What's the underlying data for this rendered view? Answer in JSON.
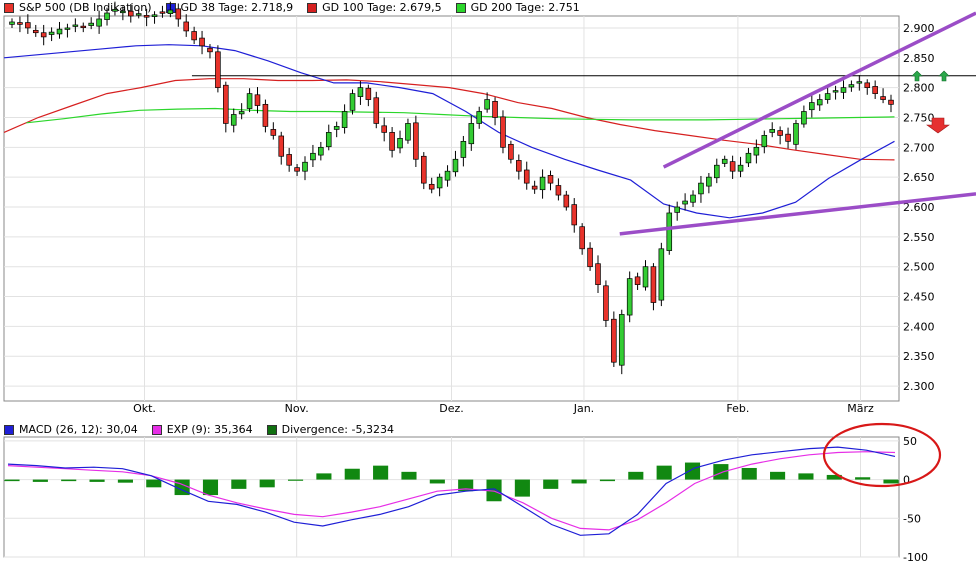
{
  "legend_top": [
    {
      "label": "S&P 500 (DB Indikation)",
      "color": "#e8332b"
    },
    {
      "label": "GD 38 Tage: 2.718,9",
      "color": "#1f1fd6"
    },
    {
      "label": "GD 100 Tage: 2.679,5",
      "color": "#d62020"
    },
    {
      "label": "GD 200 Tage: 2.751",
      "color": "#2bd62b"
    }
  ],
  "legend_macd": [
    {
      "label": "MACD (26, 12): 30,04",
      "color": "#1f1fd6"
    },
    {
      "label": "EXP (9): 35,364",
      "color": "#e62ee6"
    },
    {
      "label": "Divergence: -5,3234",
      "color": "#107010"
    }
  ],
  "chart_data": [
    {
      "type": "candlestick",
      "title": "S&P 500 (DB Indikation)",
      "x_labels": [
        "Okt.",
        "Nov.",
        "Dez.",
        "Jan.",
        "Feb.",
        "März"
      ],
      "y_ticks": [
        "2.900",
        "2.850",
        "2.800",
        "2.750",
        "2.700",
        "2.650",
        "2.600",
        "2.550",
        "2.500",
        "2.450",
        "2.400",
        "2.350",
        "2.300"
      ],
      "ylim": [
        2275,
        2920
      ],
      "close_path": [
        2910,
        2906,
        2900,
        2892,
        2885,
        2893,
        2898,
        2900,
        2905,
        2902,
        2908,
        2915,
        2925,
        2931,
        2928,
        2920,
        2924,
        2918,
        2922,
        2926,
        2930,
        2915,
        2895,
        2880,
        2870,
        2860,
        2800,
        2740,
        2755,
        2760,
        2790,
        2770,
        2735,
        2720,
        2685,
        2670,
        2660,
        2675,
        2690,
        2700,
        2725,
        2735,
        2760,
        2790,
        2800,
        2780,
        2740,
        2725,
        2695,
        2715,
        2740,
        2680,
        2640,
        2630,
        2650,
        2660,
        2680,
        2710,
        2740,
        2760,
        2780,
        2750,
        2700,
        2680,
        2660,
        2640,
        2630,
        2650,
        2640,
        2620,
        2600,
        2570,
        2530,
        2500,
        2470,
        2410,
        2340,
        2420,
        2480,
        2470,
        2500,
        2440,
        2530,
        2590,
        2600,
        2610,
        2620,
        2640,
        2650,
        2670,
        2680,
        2660,
        2670,
        2690,
        2700,
        2720,
        2730,
        2720,
        2710,
        2740,
        2760,
        2775,
        2780,
        2790,
        2795,
        2800,
        2805,
        2810,
        2800,
        2790,
        2780,
        2772
      ],
      "ma_38": {
        "name": "GD 38 Tage",
        "values": [
          2850,
          2855,
          2860,
          2865,
          2870,
          2872,
          2870,
          2862,
          2845,
          2825,
          2808,
          2808,
          2800,
          2790,
          2760,
          2725,
          2700,
          2680,
          2662,
          2645,
          2605,
          2590,
          2582,
          2590,
          2608,
          2648,
          2680,
          2710
        ]
      },
      "ma_100": {
        "name": "GD 100 Tage",
        "values": [
          2725,
          2750,
          2770,
          2790,
          2800,
          2812,
          2815,
          2815,
          2812,
          2812,
          2813,
          2810,
          2805,
          2800,
          2790,
          2775,
          2765,
          2750,
          2738,
          2728,
          2720,
          2712,
          2705,
          2696,
          2688,
          2680,
          2679
        ]
      },
      "ma_200": {
        "name": "GD 200 Tage",
        "values": [
          2741,
          2748,
          2756,
          2762,
          2764,
          2765,
          2762,
          2760,
          2760,
          2759,
          2758,
          2755,
          2752,
          2750,
          2748,
          2747,
          2746,
          2746,
          2746,
          2747,
          2748,
          2749,
          2750,
          2751
        ]
      },
      "resistance": 2820,
      "channel_upper": [
        [
          2667,
          2925
        ],
        [
          2808,
          3160
        ]
      ],
      "channel_lower": [
        [
          2555,
          2622
        ],
        [
          2700,
          2990
        ]
      ],
      "annotations": [
        "up-arrow",
        "up-arrow",
        "down-arrow"
      ]
    },
    {
      "type": "macd",
      "x_labels": [
        "Okt.",
        "Nov.",
        "Dez.",
        "Jan.",
        "Feb.",
        "März"
      ],
      "y_ticks": [
        "50",
        "0",
        "-50",
        "-100"
      ],
      "ylim": [
        -100,
        55
      ],
      "macd": {
        "name": "MACD (26, 12)",
        "values": [
          20,
          18,
          15,
          16,
          14,
          5,
          -12,
          -28,
          -32,
          -42,
          -55,
          -60,
          -52,
          -45,
          -35,
          -20,
          -15,
          -12,
          -35,
          -58,
          -72,
          -70,
          -45,
          -5,
          15,
          25,
          32,
          36,
          40,
          42,
          38,
          30
        ]
      },
      "signal": {
        "name": "EXP (9)",
        "values": [
          18,
          16,
          14,
          12,
          10,
          5,
          -5,
          -20,
          -30,
          -38,
          -45,
          -48,
          -42,
          -35,
          -25,
          -15,
          -12,
          -15,
          -30,
          -50,
          -63,
          -65,
          -52,
          -30,
          -5,
          10,
          20,
          27,
          32,
          35,
          36,
          35
        ]
      },
      "divergence": {
        "name": "Divergence",
        "values": [
          -2,
          -3,
          -2,
          -3,
          -4,
          -10,
          -20,
          -20,
          -12,
          -10,
          0,
          8,
          14,
          18,
          10,
          -5,
          -15,
          -28,
          -22,
          -12,
          -5,
          -2,
          10,
          18,
          22,
          20,
          15,
          10,
          8,
          6,
          3,
          -5
        ]
      },
      "annotations": [
        "ellipse"
      ]
    }
  ]
}
